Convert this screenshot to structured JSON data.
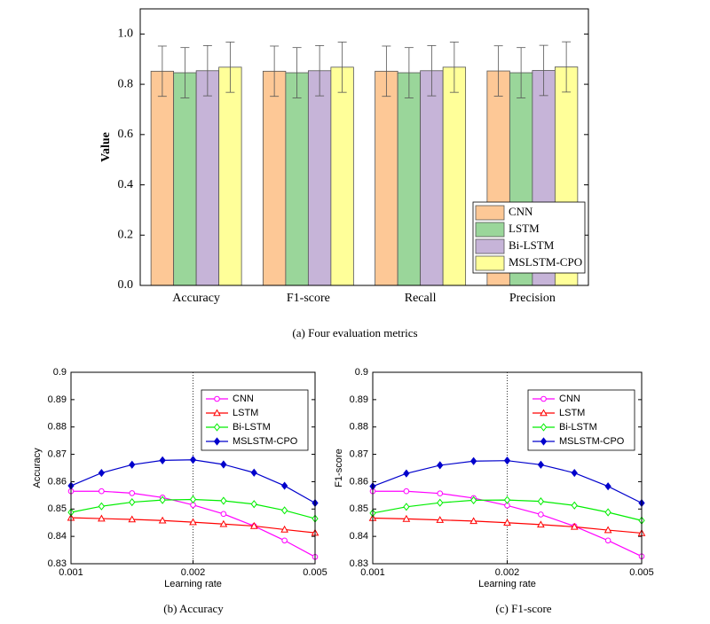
{
  "chart_data": [
    {
      "type": "bar",
      "ylabel": "Value",
      "caption": "(a)  Four evaluation metrics",
      "categories": [
        "Accuracy",
        "F1-score",
        "Recall",
        "Precision"
      ],
      "series": [
        {
          "name": "CNN",
          "color": "#fdc896",
          "values": [
            0.852,
            0.852,
            0.852,
            0.853
          ],
          "errors": [
            0.1,
            0.1,
            0.1,
            0.1
          ]
        },
        {
          "name": "LSTM",
          "color": "#9ad69a",
          "values": [
            0.846,
            0.846,
            0.846,
            0.846
          ],
          "errors": [
            0.1,
            0.1,
            0.1,
            0.1
          ]
        },
        {
          "name": "Bi-LSTM",
          "color": "#c6b4d8",
          "values": [
            0.854,
            0.854,
            0.854,
            0.855
          ],
          "errors": [
            0.1,
            0.1,
            0.1,
            0.1
          ]
        },
        {
          "name": "MSLSTM-CPO",
          "color": "#ffff99",
          "values": [
            0.868,
            0.868,
            0.868,
            0.869
          ],
          "errors": [
            0.1,
            0.1,
            0.1,
            0.1
          ]
        }
      ],
      "ylim": [
        0,
        1.1
      ],
      "yticks": [
        {
          "value": 0,
          "label": "0.0"
        },
        0.2,
        0.4,
        0.6,
        0.8,
        {
          "value": 1,
          "label": "1.0"
        }
      ],
      "legend": "lower right"
    },
    {
      "type": "line",
      "ylabel": "Accuracy",
      "xlabel": "Learning rate",
      "caption": "(b)  Accuracy",
      "categories": [
        "0.001",
        null,
        null,
        null,
        "0.002",
        null,
        null,
        null,
        "0.005"
      ],
      "series": [
        {
          "name": "CNN",
          "color": "#ff00ff",
          "marker": "circle",
          "filled": false,
          "values": [
            0.8565,
            0.8565,
            0.8558,
            0.8542,
            0.8515,
            0.8482,
            0.8438,
            0.8385,
            0.8325
          ]
        },
        {
          "name": "LSTM",
          "color": "#ff0000",
          "marker": "triangle",
          "filled": false,
          "values": [
            0.8468,
            0.8465,
            0.8462,
            0.8458,
            0.8452,
            0.8445,
            0.8438,
            0.8425,
            0.8413
          ]
        },
        {
          "name": "Bi-LSTM",
          "color": "#00ee00",
          "marker": "diamond",
          "filled": false,
          "values": [
            0.8488,
            0.851,
            0.8525,
            0.8533,
            0.8535,
            0.853,
            0.8518,
            0.8495,
            0.8465
          ]
        },
        {
          "name": "MSLSTM-CPO",
          "color": "#0000cc",
          "marker": "diamond",
          "filled": true,
          "values": [
            0.8585,
            0.8632,
            0.8662,
            0.8678,
            0.868,
            0.8663,
            0.8633,
            0.8585,
            0.8522
          ]
        }
      ],
      "ylim": [
        0.83,
        0.9
      ],
      "yticks": [
        0.83,
        0.84,
        0.85,
        0.86,
        0.87,
        0.88,
        0.89,
        0.9
      ],
      "xgrid": true,
      "legend": "upper right"
    },
    {
      "type": "line",
      "ylabel": "F1-score",
      "xlabel": "Learning rate",
      "caption": "(c)  F1-score",
      "categories": [
        "0.001",
        null,
        null,
        null,
        "0.002",
        null,
        null,
        null,
        "0.005"
      ],
      "series": [
        {
          "name": "CNN",
          "color": "#ff00ff",
          "marker": "circle",
          "filled": false,
          "values": [
            0.8565,
            0.8565,
            0.8557,
            0.854,
            0.8513,
            0.848,
            0.8437,
            0.8385,
            0.8327
          ]
        },
        {
          "name": "LSTM",
          "color": "#ff0000",
          "marker": "triangle",
          "filled": false,
          "values": [
            0.8467,
            0.8464,
            0.846,
            0.8456,
            0.845,
            0.8443,
            0.8435,
            0.8423,
            0.8412
          ]
        },
        {
          "name": "Bi-LSTM",
          "color": "#00ee00",
          "marker": "diamond",
          "filled": false,
          "values": [
            0.8485,
            0.8508,
            0.8523,
            0.8532,
            0.8533,
            0.8528,
            0.8513,
            0.8488,
            0.8458
          ]
        },
        {
          "name": "MSLSTM-CPO",
          "color": "#0000cc",
          "marker": "diamond",
          "filled": true,
          "values": [
            0.8583,
            0.863,
            0.866,
            0.8675,
            0.8677,
            0.8662,
            0.8632,
            0.8583,
            0.8522
          ]
        }
      ],
      "ylim": [
        0.83,
        0.9
      ],
      "yticks": [
        0.83,
        0.84,
        0.85,
        0.86,
        0.87,
        0.88,
        0.89,
        0.9
      ],
      "xgrid": true,
      "legend": "upper right"
    }
  ]
}
